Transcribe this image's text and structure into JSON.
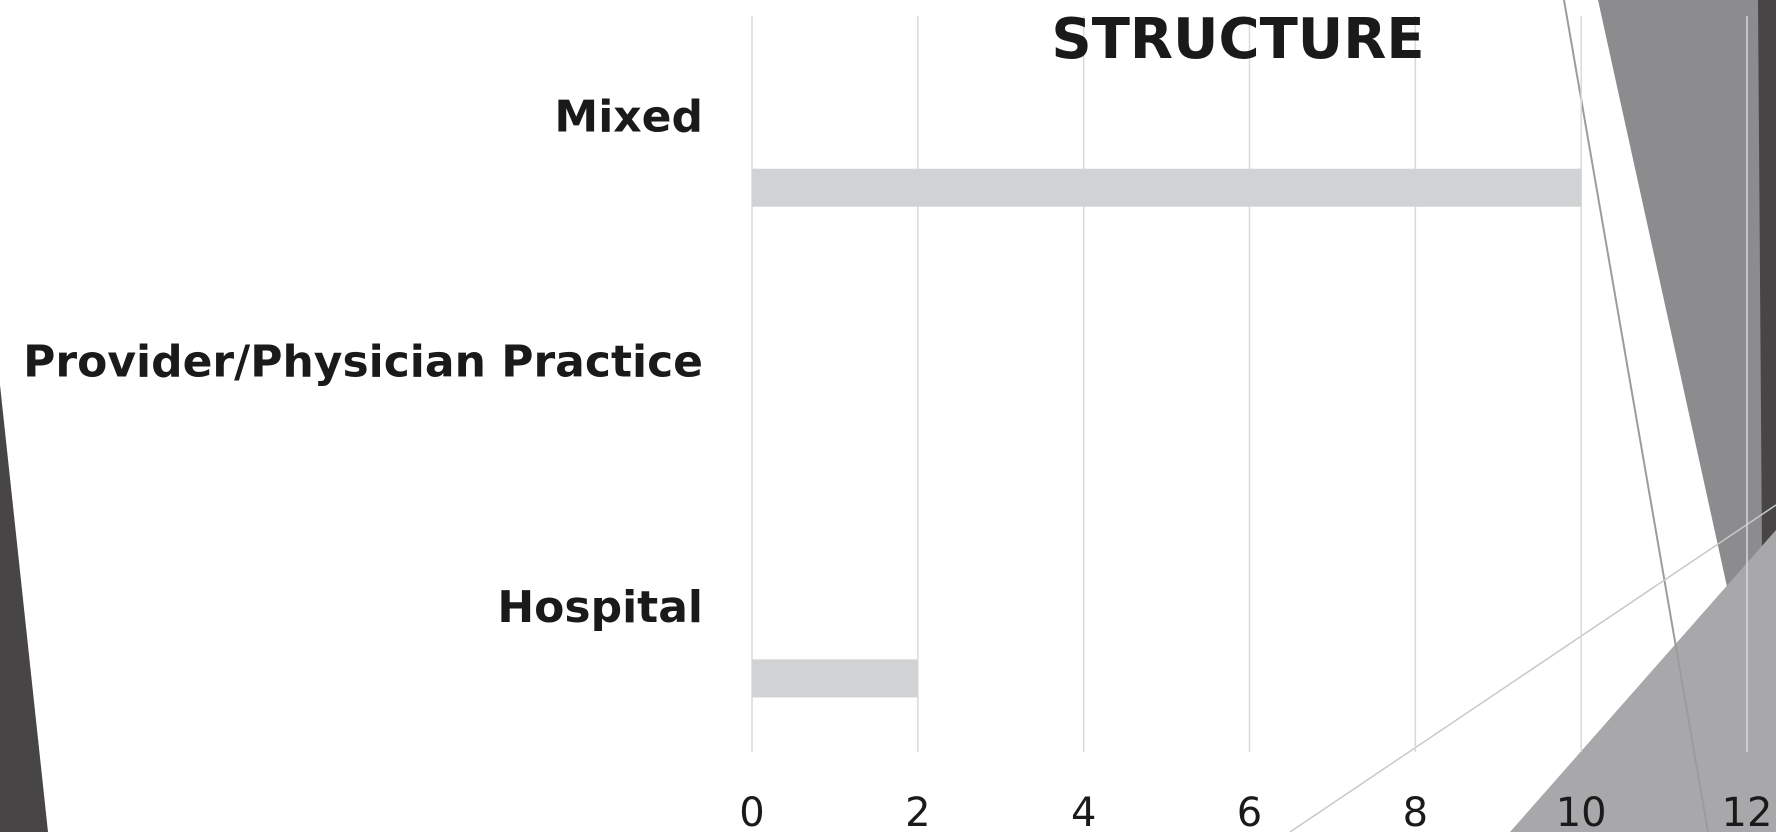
{
  "slide": {
    "background": "#ffffff",
    "accent_dark": "#474546",
    "accent_mid": "#8c8c8e",
    "accent_light": "#a8a8aa"
  },
  "chart_data": {
    "type": "bar",
    "orientation": "horizontal",
    "title": "STRUCTURE",
    "categories": [
      "Hospital",
      "Provider/Physician Practice",
      "Mixed"
    ],
    "values": [
      2,
      0,
      10
    ],
    "xlim": [
      0,
      12
    ],
    "xticks": [
      "0",
      "2",
      "4",
      "6",
      "8",
      "10",
      "12"
    ],
    "bar_color": "#d1d2d4",
    "grid": true,
    "legend": "none"
  }
}
